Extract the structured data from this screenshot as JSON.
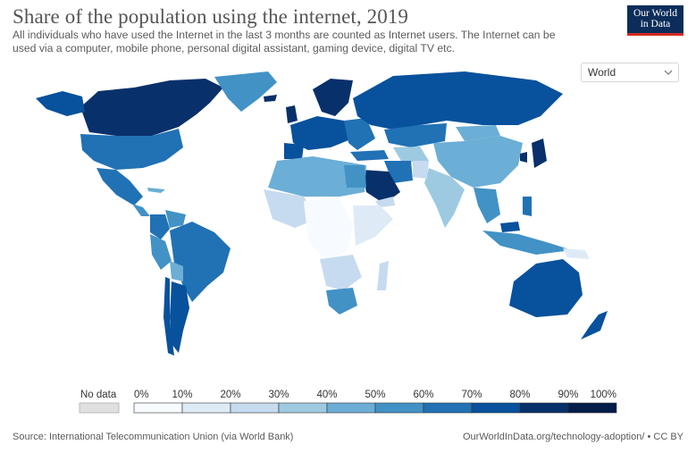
{
  "header": {
    "title": "Share of the population using the internet, 2019",
    "subtitle": "All individuals who have used the Internet in the last 3 months are counted as Internet users. The Internet can be used via a computer, mobile phone, personal digital assistant, gaming device, digital TV etc."
  },
  "logo": {
    "line1": "Our World",
    "line2": "in Data",
    "bg": "#0c2d5a",
    "accent": "#d42b21"
  },
  "region_select": {
    "value": "World",
    "icon": "chevron-down-icon"
  },
  "legend": {
    "no_data_label": "No data",
    "no_data_color": "#e0e0e0",
    "ticks": [
      "0%",
      "10%",
      "20%",
      "30%",
      "40%",
      "50%",
      "60%",
      "70%",
      "80%",
      "90%",
      "100%"
    ],
    "bin_colors": [
      "#f7fbff",
      "#deebf7",
      "#c6dbef",
      "#9ecae1",
      "#6baed6",
      "#4292c6",
      "#2171b5",
      "#08519c",
      "#08306b",
      "#041e4a"
    ]
  },
  "footer": {
    "source": "Source: International Telecommunication Union (via World Bank)",
    "link": "OurWorldInData.org/technology-adoption/ • CC BY"
  }
}
